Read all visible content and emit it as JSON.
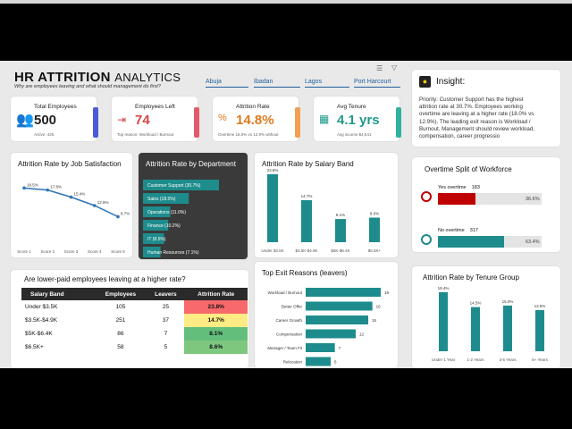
{
  "header": {
    "title_bold": "HR ATTRITION",
    "title_light": "ANALYTICS",
    "subtitle": "Why are employees leaving  and what should management do first?"
  },
  "filters": [
    "Abuja",
    "Ibadan",
    "Lagos",
    "Port Harcourt"
  ],
  "kpis": [
    {
      "label": "Total Employees",
      "value": "500",
      "sub": "Active: 426",
      "icon": "people-icon",
      "color": "#222222",
      "accent": "#4a5bd8"
    },
    {
      "label": "Employees Left",
      "value": "74",
      "sub": "Top reason: Workload / Burnout",
      "icon": "user-exit-icon",
      "color": "#d64545",
      "accent": "#e25b6a"
    },
    {
      "label": "Attrition Rate",
      "value": "14.8%",
      "sub": "Overtime 18.0% vs 12.9% without",
      "icon": "percent-icon",
      "color": "#e07a1f",
      "accent": "#f0a050"
    },
    {
      "label": "Avg Tenure",
      "value": "4.1 yrs",
      "sub": "Avg income $4,541",
      "icon": "calendar-icon",
      "color": "#1f9a8a",
      "accent": "#2fb3a0"
    }
  ],
  "insight": {
    "title": "Insight:",
    "text": "Priority: Customer Support has the highest attrition rate at 30.7%. Employees working overtime are leaving at a higher rate (18.0% vs 12.9%). The leading exit reason is Workload / Burnout. Management should review workload, compensation, career progressio"
  },
  "colors": {
    "teal": "#1e8c8c",
    "line": "#2e74b5",
    "dark_card": "#3a3a3a",
    "red": "#c00000"
  },
  "chart_data": [
    {
      "type": "line",
      "title": "Attrition Rate by Job Satisfaction",
      "categories": [
        "Score 1",
        "Score 2",
        "Score 3",
        "Score 4",
        "Score 5"
      ],
      "values": [
        18.5,
        17.8,
        15.4,
        12.5,
        8.7
      ],
      "labels": [
        "18.5%",
        "17.8%",
        "15.4%",
        "12.5%",
        "8.7%"
      ],
      "ylim": [
        0,
        25
      ]
    },
    {
      "type": "bar",
      "orientation": "horizontal",
      "title": "Attrition Rate by Department",
      "categories": [
        "Customer Support",
        "Sales",
        "Operations",
        "Finance",
        "IT",
        "Human Resources"
      ],
      "values": [
        30.7,
        18.5,
        11.0,
        10.2,
        8.5,
        7.1
      ],
      "labels": [
        "Customer Support (30.7%)",
        "Sales (18.5%)",
        "Operations (11.0%)",
        "Finance (10.2%)",
        "IT (8.5%)",
        "Human Resources (7.1%)"
      ]
    },
    {
      "type": "bar",
      "title": "Attrition Rate by Salary Band",
      "categories": [
        "Under $3.5K",
        "$3.5K-$4.9K",
        "$5K-$6.4K",
        "$6.5K+"
      ],
      "values": [
        23.8,
        14.7,
        8.1,
        8.6
      ],
      "labels": [
        "23.8%",
        "14.7%",
        "8.1%",
        "8.6%"
      ],
      "ylim": [
        0,
        25
      ]
    },
    {
      "type": "bar",
      "orientation": "horizontal",
      "title": "Top Exit Reasons (leavers)",
      "categories": [
        "Workload / Burnout",
        "Better Offer",
        "Career Growth",
        "Compensation",
        "Manager / Team Fit",
        "Relocation"
      ],
      "values": [
        18,
        16,
        15,
        12,
        7,
        6
      ]
    },
    {
      "type": "bar",
      "orientation": "horizontal",
      "title": "Overtime Split of Workforce",
      "categories": [
        "Yes overtime",
        "No overtime"
      ],
      "counts": [
        183,
        317
      ],
      "values": [
        36.6,
        63.4
      ],
      "labels": [
        "36.6%",
        "63.4%"
      ],
      "colors": [
        "#c00000",
        "#1e8c8c"
      ]
    },
    {
      "type": "bar",
      "title": "Attrition Rate by Tenure Group",
      "categories": [
        "Under 1 Year",
        "1-2 Years",
        "3-5 Years",
        "6+ Years"
      ],
      "values": [
        19.4,
        14.5,
        15.0,
        13.5
      ],
      "labels": [
        "19.4%",
        "14.5%",
        "15.0%",
        "13.5%"
      ],
      "ylim": [
        0,
        22
      ]
    },
    {
      "type": "table",
      "title": "Are lower-paid employees leaving at a higher rate?",
      "columns": [
        "Salary Band",
        "Employees",
        "Leavers",
        "Attrition Rate"
      ],
      "rows": [
        [
          "Under $3.5K",
          "105",
          "25",
          "23.8%"
        ],
        [
          "$3.5K-$4.9K",
          "251",
          "37",
          "14.7%"
        ],
        [
          "$5K-$6.4K",
          "86",
          "7",
          "8.1%"
        ],
        [
          "$6.5K+",
          "58",
          "5",
          "8.6%"
        ]
      ],
      "row_colors": [
        "#f8696b",
        "#ffeb84",
        "#63be7b",
        "#7ec77f"
      ]
    }
  ]
}
